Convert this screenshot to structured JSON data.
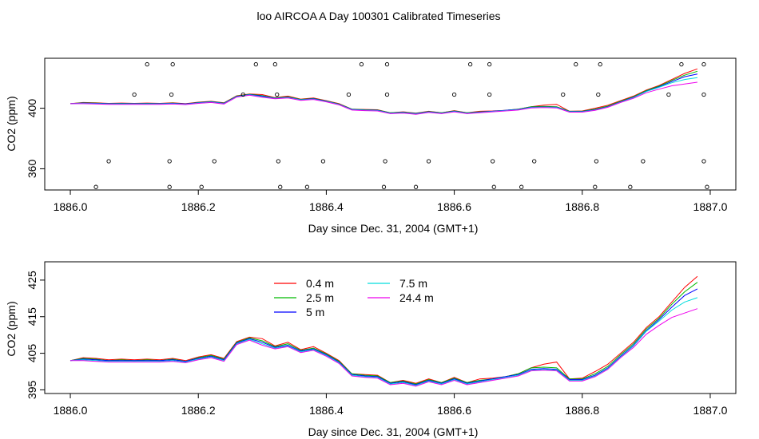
{
  "page_title": "loo AIRCOA A  Day 100301  Calibrated Timeseries",
  "chart_data": [
    {
      "type": "line",
      "panel": "top",
      "xlabel": "Day since Dec. 31, 2004 (GMT+1)",
      "ylabel": "CO2 (ppm)",
      "xlim": [
        1885.96,
        1887.04
      ],
      "ylim": [
        346,
        433
      ],
      "xticks": [
        1886.0,
        1886.2,
        1886.4,
        1886.6,
        1886.8,
        1887.0
      ],
      "xtick_labels": [
        "1886.0",
        "1886.2",
        "1886.4",
        "1886.6",
        "1886.8",
        "1887.0"
      ],
      "yticks": [
        360,
        400
      ],
      "ytick_labels": [
        "360",
        "400"
      ],
      "x": [
        1886.0,
        1886.02,
        1886.04,
        1886.06,
        1886.08,
        1886.1,
        1886.12,
        1886.14,
        1886.16,
        1886.18,
        1886.2,
        1886.22,
        1886.24,
        1886.26,
        1886.28,
        1886.3,
        1886.32,
        1886.34,
        1886.36,
        1886.38,
        1886.4,
        1886.42,
        1886.44,
        1886.46,
        1886.48,
        1886.5,
        1886.52,
        1886.54,
        1886.56,
        1886.58,
        1886.6,
        1886.62,
        1886.64,
        1886.66,
        1886.68,
        1886.7,
        1886.72,
        1886.74,
        1886.76,
        1886.78,
        1886.8,
        1886.82,
        1886.84,
        1886.86,
        1886.88,
        1886.9,
        1886.92,
        1886.94,
        1886.96,
        1886.98
      ],
      "series": [
        {
          "name": "0.4 m",
          "color": "#ff0000",
          "values": [
            403,
            403.8,
            403.6,
            403.2,
            403.4,
            403.2,
            403.4,
            403.2,
            403.6,
            403,
            404,
            404.6,
            403.6,
            408.2,
            409.4,
            409,
            407,
            408,
            406,
            406.8,
            405,
            403,
            399.4,
            399.2,
            399,
            397,
            397.6,
            396.8,
            398,
            397,
            398.4,
            397,
            398,
            398.2,
            398.6,
            399.4,
            401,
            402,
            402.6,
            398,
            398.2,
            400,
            402,
            405,
            408,
            412,
            415,
            419,
            423,
            426
          ]
        },
        {
          "name": "2.5 m",
          "color": "#00bb00",
          "values": [
            403,
            403.6,
            403.4,
            403,
            403.2,
            403,
            403.2,
            403,
            403.4,
            402.8,
            403.8,
            404.4,
            403.4,
            408,
            409.2,
            408.4,
            406.8,
            407.6,
            405.8,
            406.4,
            404.8,
            402.8,
            399.4,
            399,
            398.8,
            397,
            397.4,
            396.6,
            397.8,
            397,
            398.2,
            397,
            397.6,
            398,
            398.6,
            399.4,
            401,
            401.2,
            401,
            398,
            398,
            399.4,
            401.4,
            404.6,
            407.6,
            411.6,
            414.6,
            418.4,
            421.8,
            424.4
          ]
        },
        {
          "name": "5 m",
          "color": "#0000ff",
          "values": [
            403,
            403.4,
            403.2,
            403,
            403,
            403,
            403,
            403,
            403.2,
            402.8,
            403.6,
            404.2,
            403.2,
            407.8,
            409,
            408,
            406.6,
            407.2,
            405.6,
            406.2,
            404.6,
            402.6,
            399.2,
            398.8,
            398.6,
            396.8,
            397.2,
            396.4,
            397.6,
            396.8,
            398,
            396.8,
            397.4,
            398,
            398.6,
            399.2,
            400.6,
            400.8,
            400.6,
            397.8,
            397.8,
            399,
            401,
            404.2,
            407.2,
            411.2,
            414.2,
            417.6,
            420.8,
            422.6
          ]
        },
        {
          "name": "7.5 m",
          "color": "#00dddd",
          "values": [
            403,
            403.2,
            403,
            402.8,
            402.8,
            402.8,
            402.8,
            402.8,
            403,
            402.6,
            403.4,
            404,
            403,
            407.6,
            408.8,
            407.6,
            406.4,
            407,
            405.4,
            406,
            404.4,
            402.4,
            399,
            398.6,
            398.4,
            396.6,
            397,
            396.2,
            397.4,
            396.6,
            397.8,
            396.6,
            397.2,
            397.8,
            398.4,
            399,
            400.4,
            400.6,
            400.4,
            397.6,
            397.6,
            398.8,
            400.8,
            404,
            407,
            411,
            413.8,
            416.8,
            419,
            420.2
          ]
        },
        {
          "name": "24.4 m",
          "color": "#ee00ee",
          "values": [
            403,
            403,
            402.8,
            402.6,
            402.6,
            402.6,
            402.6,
            402.6,
            402.8,
            402.4,
            403.2,
            403.8,
            402.8,
            407.4,
            408.6,
            407.2,
            406.2,
            406.8,
            405.2,
            405.8,
            404.2,
            402.2,
            398.8,
            398.4,
            398.2,
            396.4,
            396.8,
            396,
            397.2,
            396.4,
            397.6,
            396.4,
            397,
            397.6,
            398.2,
            398.8,
            400.2,
            400.4,
            400.2,
            397.4,
            397.4,
            398.6,
            400.6,
            403.8,
            406.6,
            410.2,
            412.6,
            414.8,
            416,
            417.2
          ]
        }
      ],
      "markers": [
        {
          "x": 1886.04,
          "y": 348
        },
        {
          "x": 1886.06,
          "y": 365
        },
        {
          "x": 1886.1,
          "y": 409
        },
        {
          "x": 1886.12,
          "y": 429
        },
        {
          "x": 1886.155,
          "y": 348
        },
        {
          "x": 1886.155,
          "y": 365
        },
        {
          "x": 1886.158,
          "y": 409
        },
        {
          "x": 1886.16,
          "y": 429
        },
        {
          "x": 1886.205,
          "y": 348
        },
        {
          "x": 1886.225,
          "y": 365
        },
        {
          "x": 1886.27,
          "y": 409
        },
        {
          "x": 1886.29,
          "y": 429
        },
        {
          "x": 1886.32,
          "y": 429
        },
        {
          "x": 1886.323,
          "y": 409
        },
        {
          "x": 1886.325,
          "y": 365
        },
        {
          "x": 1886.328,
          "y": 348
        },
        {
          "x": 1886.37,
          "y": 348
        },
        {
          "x": 1886.395,
          "y": 365
        },
        {
          "x": 1886.435,
          "y": 409
        },
        {
          "x": 1886.455,
          "y": 429
        },
        {
          "x": 1886.49,
          "y": 348
        },
        {
          "x": 1886.492,
          "y": 365
        },
        {
          "x": 1886.495,
          "y": 409
        },
        {
          "x": 1886.495,
          "y": 429
        },
        {
          "x": 1886.54,
          "y": 348
        },
        {
          "x": 1886.56,
          "y": 365
        },
        {
          "x": 1886.6,
          "y": 409
        },
        {
          "x": 1886.625,
          "y": 429
        },
        {
          "x": 1886.655,
          "y": 409
        },
        {
          "x": 1886.655,
          "y": 429
        },
        {
          "x": 1886.66,
          "y": 365
        },
        {
          "x": 1886.662,
          "y": 348
        },
        {
          "x": 1886.705,
          "y": 348
        },
        {
          "x": 1886.725,
          "y": 365
        },
        {
          "x": 1886.77,
          "y": 409
        },
        {
          "x": 1886.79,
          "y": 429
        },
        {
          "x": 1886.82,
          "y": 348
        },
        {
          "x": 1886.822,
          "y": 365
        },
        {
          "x": 1886.825,
          "y": 409
        },
        {
          "x": 1886.828,
          "y": 429
        },
        {
          "x": 1886.875,
          "y": 348
        },
        {
          "x": 1886.895,
          "y": 365
        },
        {
          "x": 1886.935,
          "y": 409
        },
        {
          "x": 1886.955,
          "y": 429
        },
        {
          "x": 1886.99,
          "y": 429
        },
        {
          "x": 1886.99,
          "y": 409
        },
        {
          "x": 1886.99,
          "y": 365
        },
        {
          "x": 1886.995,
          "y": 348
        }
      ]
    },
    {
      "type": "line",
      "panel": "bottom",
      "xlabel": "Day since Dec. 31, 2004 (GMT+1)",
      "ylabel": "CO2 (ppm)",
      "xlim": [
        1885.96,
        1887.04
      ],
      "ylim": [
        394,
        430
      ],
      "xticks": [
        1886.0,
        1886.2,
        1886.4,
        1886.6,
        1886.8,
        1887.0
      ],
      "xtick_labels": [
        "1886.0",
        "1886.2",
        "1886.4",
        "1886.6",
        "1886.8",
        "1887.0"
      ],
      "yticks": [
        395,
        405,
        415,
        425
      ],
      "ytick_labels": [
        "395",
        "405",
        "415",
        "425"
      ],
      "legend": {
        "placement": "top-left",
        "entries": [
          {
            "label": "0.4 m",
            "color": "#ff0000"
          },
          {
            "label": "2.5 m",
            "color": "#00bb00"
          },
          {
            "label": "5 m",
            "color": "#0000ff"
          },
          {
            "label": "7.5 m",
            "color": "#00dddd"
          },
          {
            "label": "24.4 m",
            "color": "#ee00ee"
          }
        ]
      }
    }
  ]
}
